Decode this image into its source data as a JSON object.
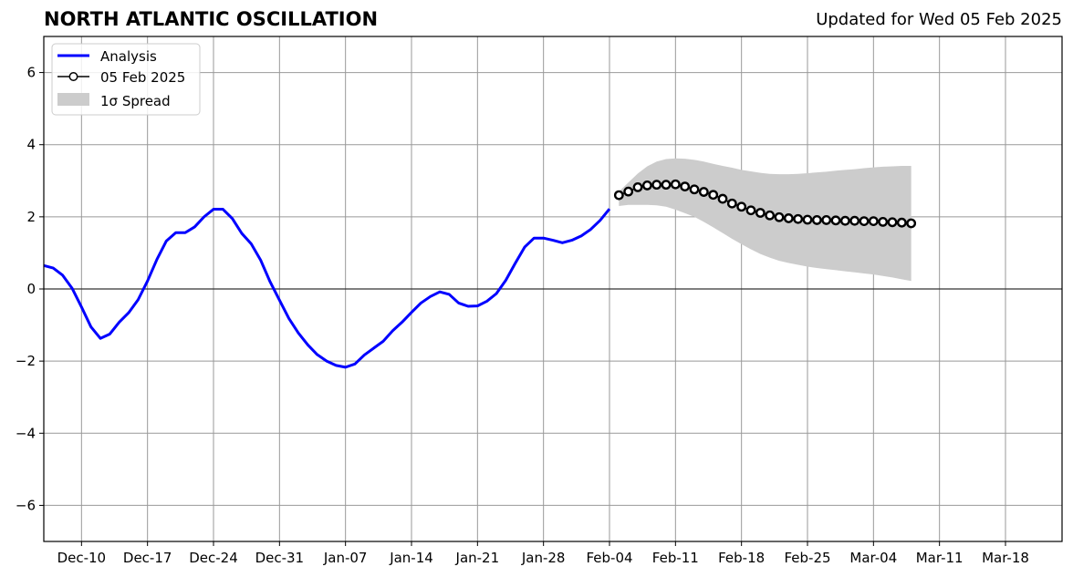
{
  "chart_data": {
    "type": "line",
    "title": "NORTH ATLANTIC OSCILLATION",
    "subtitle": "Updated for Wed 05 Feb 2025",
    "xlabel": "",
    "ylabel": "",
    "ylim": [
      -7,
      7
    ],
    "yticks": [
      -6,
      -4,
      -2,
      0,
      2,
      4,
      6
    ],
    "ytick_labels": [
      "−6",
      "−4",
      "−2",
      "0",
      "2",
      "4",
      "6"
    ],
    "x_start": "2024-12-06",
    "x_end": "2025-03-24",
    "xticks": [
      "2024-12-10",
      "2024-12-17",
      "2024-12-24",
      "2024-12-31",
      "2025-01-07",
      "2025-01-14",
      "2025-01-21",
      "2025-01-28",
      "2025-02-04",
      "2025-02-11",
      "2025-02-18",
      "2025-02-25",
      "2025-03-04",
      "2025-03-11",
      "2025-03-18"
    ],
    "xtick_labels": [
      "Dec-10",
      "Dec-17",
      "Dec-24",
      "Dec-31",
      "Jan-07",
      "Jan-14",
      "Jan-21",
      "Jan-28",
      "Feb-04",
      "Feb-11",
      "Feb-18",
      "Feb-25",
      "Mar-04",
      "Mar-11",
      "Mar-18"
    ],
    "grid": true,
    "legend": {
      "position": "top-left",
      "entries": [
        "Analysis",
        "05 Feb 2025",
        "1σ Spread"
      ]
    },
    "series": [
      {
        "name": "Analysis",
        "color": "#0000ff",
        "style": "line",
        "points": [
          [
            "2024-12-06",
            0.65
          ],
          [
            "2024-12-07",
            0.58
          ],
          [
            "2024-12-08",
            0.38
          ],
          [
            "2024-12-09",
            0.02
          ],
          [
            "2024-12-10",
            -0.5
          ],
          [
            "2024-12-11",
            -1.05
          ],
          [
            "2024-12-12",
            -1.37
          ],
          [
            "2024-12-13",
            -1.25
          ],
          [
            "2024-12-14",
            -0.92
          ],
          [
            "2024-12-15",
            -0.66
          ],
          [
            "2024-12-16",
            -0.3
          ],
          [
            "2024-12-17",
            0.22
          ],
          [
            "2024-12-18",
            0.82
          ],
          [
            "2024-12-19",
            1.33
          ],
          [
            "2024-12-20",
            1.56
          ],
          [
            "2024-12-21",
            1.56
          ],
          [
            "2024-12-22",
            1.72
          ],
          [
            "2024-12-23",
            2.0
          ],
          [
            "2024-12-24",
            2.21
          ],
          [
            "2024-12-25",
            2.21
          ],
          [
            "2024-12-26",
            1.95
          ],
          [
            "2024-12-27",
            1.54
          ],
          [
            "2024-12-28",
            1.25
          ],
          [
            "2024-12-29",
            0.8
          ],
          [
            "2024-12-30",
            0.2
          ],
          [
            "2024-12-31",
            -0.31
          ],
          [
            "2025-01-01",
            -0.82
          ],
          [
            "2025-01-02",
            -1.22
          ],
          [
            "2025-01-03",
            -1.55
          ],
          [
            "2025-01-04",
            -1.82
          ],
          [
            "2025-01-05",
            -2.0
          ],
          [
            "2025-01-06",
            -2.12
          ],
          [
            "2025-01-07",
            -2.17
          ],
          [
            "2025-01-08",
            -2.08
          ],
          [
            "2025-01-09",
            -1.83
          ],
          [
            "2025-01-10",
            -1.64
          ],
          [
            "2025-01-11",
            -1.45
          ],
          [
            "2025-01-12",
            -1.16
          ],
          [
            "2025-01-13",
            -0.92
          ],
          [
            "2025-01-14",
            -0.65
          ],
          [
            "2025-01-15",
            -0.39
          ],
          [
            "2025-01-16",
            -0.21
          ],
          [
            "2025-01-17",
            -0.08
          ],
          [
            "2025-01-18",
            -0.15
          ],
          [
            "2025-01-19",
            -0.39
          ],
          [
            "2025-01-20",
            -0.48
          ],
          [
            "2025-01-21",
            -0.47
          ],
          [
            "2025-01-22",
            -0.34
          ],
          [
            "2025-01-23",
            -0.13
          ],
          [
            "2025-01-24",
            0.24
          ],
          [
            "2025-01-25",
            0.71
          ],
          [
            "2025-01-26",
            1.16
          ],
          [
            "2025-01-27",
            1.41
          ],
          [
            "2025-01-28",
            1.41
          ],
          [
            "2025-01-29",
            1.35
          ],
          [
            "2025-01-30",
            1.28
          ],
          [
            "2025-01-31",
            1.35
          ],
          [
            "2025-02-01",
            1.47
          ],
          [
            "2025-02-02",
            1.65
          ],
          [
            "2025-02-03",
            1.9
          ],
          [
            "2025-02-04",
            2.22
          ]
        ]
      },
      {
        "name": "05 Feb 2025",
        "color": "#000000",
        "marker_fill": "#ffffff",
        "style": "line-markers",
        "points": [
          [
            "2025-02-05",
            2.6
          ],
          [
            "2025-02-06",
            2.7
          ],
          [
            "2025-02-07",
            2.82
          ],
          [
            "2025-02-08",
            2.87
          ],
          [
            "2025-02-09",
            2.89
          ],
          [
            "2025-02-10",
            2.89
          ],
          [
            "2025-02-11",
            2.9
          ],
          [
            "2025-02-12",
            2.84
          ],
          [
            "2025-02-13",
            2.76
          ],
          [
            "2025-02-14",
            2.69
          ],
          [
            "2025-02-15",
            2.61
          ],
          [
            "2025-02-16",
            2.5
          ],
          [
            "2025-02-17",
            2.37
          ],
          [
            "2025-02-18",
            2.28
          ],
          [
            "2025-02-19",
            2.18
          ],
          [
            "2025-02-20",
            2.11
          ],
          [
            "2025-02-21",
            2.04
          ],
          [
            "2025-02-22",
            1.99
          ],
          [
            "2025-02-23",
            1.96
          ],
          [
            "2025-02-24",
            1.94
          ],
          [
            "2025-02-25",
            1.92
          ],
          [
            "2025-02-26",
            1.91
          ],
          [
            "2025-02-27",
            1.91
          ],
          [
            "2025-02-28",
            1.9
          ],
          [
            "2025-03-01",
            1.89
          ],
          [
            "2025-03-02",
            1.89
          ],
          [
            "2025-03-03",
            1.88
          ],
          [
            "2025-03-04",
            1.88
          ],
          [
            "2025-03-05",
            1.86
          ],
          [
            "2025-03-06",
            1.85
          ],
          [
            "2025-03-07",
            1.84
          ],
          [
            "2025-03-08",
            1.82
          ]
        ]
      }
    ],
    "spread": {
      "name": "1σ Spread",
      "color": "#cccccc",
      "points": [
        [
          "2025-02-05",
          2.3,
          2.7
        ],
        [
          "2025-02-06",
          2.33,
          2.95
        ],
        [
          "2025-02-07",
          2.33,
          3.2
        ],
        [
          "2025-02-08",
          2.33,
          3.4
        ],
        [
          "2025-02-09",
          2.32,
          3.53
        ],
        [
          "2025-02-10",
          2.28,
          3.6
        ],
        [
          "2025-02-11",
          2.2,
          3.62
        ],
        [
          "2025-02-12",
          2.1,
          3.61
        ],
        [
          "2025-02-13",
          2.0,
          3.58
        ],
        [
          "2025-02-14",
          1.86,
          3.53
        ],
        [
          "2025-02-15",
          1.71,
          3.47
        ],
        [
          "2025-02-16",
          1.55,
          3.41
        ],
        [
          "2025-02-17",
          1.39,
          3.36
        ],
        [
          "2025-02-18",
          1.24,
          3.3
        ],
        [
          "2025-02-19",
          1.1,
          3.26
        ],
        [
          "2025-02-20",
          0.97,
          3.22
        ],
        [
          "2025-02-21",
          0.87,
          3.19
        ],
        [
          "2025-02-22",
          0.78,
          3.18
        ],
        [
          "2025-02-23",
          0.72,
          3.18
        ],
        [
          "2025-02-24",
          0.67,
          3.19
        ],
        [
          "2025-02-25",
          0.62,
          3.21
        ],
        [
          "2025-02-26",
          0.58,
          3.23
        ],
        [
          "2025-02-27",
          0.55,
          3.25
        ],
        [
          "2025-02-28",
          0.52,
          3.28
        ],
        [
          "2025-03-01",
          0.49,
          3.3
        ],
        [
          "2025-03-02",
          0.46,
          3.32
        ],
        [
          "2025-03-03",
          0.43,
          3.35
        ],
        [
          "2025-03-04",
          0.4,
          3.37
        ],
        [
          "2025-03-05",
          0.36,
          3.39
        ],
        [
          "2025-03-06",
          0.32,
          3.4
        ],
        [
          "2025-03-07",
          0.27,
          3.41
        ],
        [
          "2025-03-08",
          0.22,
          3.41
        ]
      ]
    }
  }
}
